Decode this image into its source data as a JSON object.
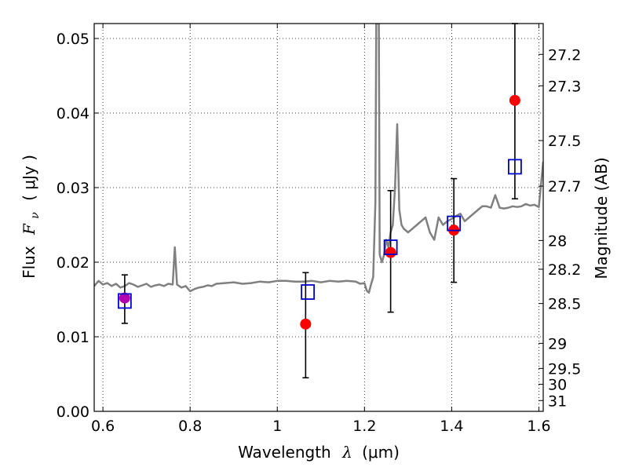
{
  "chart_data": {
    "type": "scatter",
    "xlabel": {
      "text": "Wavelength",
      "sym": "λ",
      "unit": "(μm)"
    },
    "ylabel": {
      "text": "Flux",
      "sym": "F",
      "sub": "ν",
      "unit": "( μJy )"
    },
    "y2label": "Magnitude (AB)",
    "xlim": [
      0.58,
      1.61
    ],
    "ylim": [
      0.0,
      0.052
    ],
    "grid": true,
    "xticks": [
      {
        "value": 0.6,
        "label": "0.6"
      },
      {
        "value": 0.8,
        "label": "0.8"
      },
      {
        "value": 1.0,
        "label": "1"
      },
      {
        "value": 1.2,
        "label": "1.2"
      },
      {
        "value": 1.4,
        "label": "1.4"
      },
      {
        "value": 1.6,
        "label": "1.6"
      }
    ],
    "yticks": [
      {
        "value": 0.0,
        "label": "0.00"
      },
      {
        "value": 0.01,
        "label": "0.01"
      },
      {
        "value": 0.02,
        "label": "0.02"
      },
      {
        "value": 0.03,
        "label": "0.03"
      },
      {
        "value": 0.04,
        "label": "0.04"
      },
      {
        "value": 0.05,
        "label": "0.05"
      }
    ],
    "y2ticks": [
      {
        "mag": 27.2,
        "label": "27.2"
      },
      {
        "mag": 27.3,
        "label": "27.3"
      },
      {
        "mag": 27.5,
        "label": "27.5"
      },
      {
        "mag": 27.7,
        "label": "27.7"
      },
      {
        "mag": 28.0,
        "label": "28"
      },
      {
        "mag": 28.2,
        "label": "28.2"
      },
      {
        "mag": 28.5,
        "label": "28.5"
      },
      {
        "mag": 29.0,
        "label": "29"
      },
      {
        "mag": 29.5,
        "label": "29.5"
      },
      {
        "mag": 30.0,
        "label": "30"
      },
      {
        "mag": 31.0,
        "label": "31"
      }
    ],
    "colors": {
      "spectrum": "#808080",
      "observed": "#ff0000",
      "model": "#0000cc",
      "overlap": "#b000b0",
      "errorbar": "#000000"
    },
    "spectrum": {
      "x": [
        0.58,
        0.59,
        0.6,
        0.61,
        0.62,
        0.63,
        0.64,
        0.65,
        0.66,
        0.67,
        0.68,
        0.69,
        0.7,
        0.71,
        0.72,
        0.73,
        0.74,
        0.75,
        0.76,
        0.765,
        0.77,
        0.78,
        0.79,
        0.8,
        0.81,
        0.82,
        0.83,
        0.84,
        0.85,
        0.86,
        0.88,
        0.9,
        0.92,
        0.94,
        0.96,
        0.98,
        1.0,
        1.02,
        1.04,
        1.06,
        1.08,
        1.1,
        1.12,
        1.14,
        1.16,
        1.18,
        1.19,
        1.2,
        1.205,
        1.21,
        1.215,
        1.22,
        1.225,
        1.227,
        1.23,
        1.233,
        1.235,
        1.24,
        1.245,
        1.25,
        1.255,
        1.26,
        1.265,
        1.27,
        1.275,
        1.28,
        1.285,
        1.29,
        1.3,
        1.31,
        1.32,
        1.33,
        1.34,
        1.35,
        1.36,
        1.37,
        1.38,
        1.39,
        1.4,
        1.41,
        1.42,
        1.43,
        1.44,
        1.45,
        1.46,
        1.47,
        1.48,
        1.49,
        1.5,
        1.51,
        1.52,
        1.53,
        1.54,
        1.55,
        1.56,
        1.57,
        1.58,
        1.59,
        1.6,
        1.61
      ],
      "y": [
        0.0168,
        0.0175,
        0.017,
        0.0172,
        0.0168,
        0.0171,
        0.0166,
        0.0168,
        0.0172,
        0.017,
        0.0167,
        0.0169,
        0.0171,
        0.0167,
        0.0169,
        0.017,
        0.0168,
        0.0171,
        0.017,
        0.022,
        0.017,
        0.0166,
        0.0168,
        0.0161,
        0.0164,
        0.0166,
        0.0167,
        0.0169,
        0.0168,
        0.0171,
        0.0172,
        0.0173,
        0.0171,
        0.0172,
        0.0174,
        0.0173,
        0.0175,
        0.0175,
        0.0174,
        0.0174,
        0.0175,
        0.0173,
        0.0175,
        0.0174,
        0.0175,
        0.0174,
        0.0171,
        0.0172,
        0.0162,
        0.0159,
        0.017,
        0.018,
        0.028,
        0.052,
        0.052,
        0.052,
        0.021,
        0.02,
        0.021,
        0.023,
        0.022,
        0.024,
        0.025,
        0.03,
        0.0385,
        0.027,
        0.025,
        0.0245,
        0.024,
        0.0245,
        0.025,
        0.0255,
        0.026,
        0.024,
        0.023,
        0.026,
        0.025,
        0.0255,
        0.0258,
        0.0262,
        0.0265,
        0.0255,
        0.026,
        0.0265,
        0.027,
        0.0275,
        0.0275,
        0.0273,
        0.029,
        0.0273,
        0.0272,
        0.0273,
        0.0275,
        0.0274,
        0.0275,
        0.0278,
        0.0276,
        0.0277,
        0.0274,
        0.0335
      ]
    },
    "observed": [
      {
        "x": 0.65,
        "y": 0.0152,
        "err_lo": 0.0118,
        "err_hi": 0.0183
      },
      {
        "x": 1.065,
        "y": 0.0117,
        "err_lo": 0.0045,
        "err_hi": 0.0186
      },
      {
        "x": 1.26,
        "y": 0.0213,
        "err_lo": 0.0133,
        "err_hi": 0.0296
      },
      {
        "x": 1.405,
        "y": 0.0243,
        "err_lo": 0.0173,
        "err_hi": 0.0312
      },
      {
        "x": 1.545,
        "y": 0.0417,
        "err_lo": 0.0285,
        "err_hi": 0.052
      }
    ],
    "model": [
      {
        "x": 0.65,
        "y": 0.0148
      },
      {
        "x": 1.07,
        "y": 0.016
      },
      {
        "x": 1.26,
        "y": 0.022
      },
      {
        "x": 1.405,
        "y": 0.0252
      },
      {
        "x": 1.545,
        "y": 0.0328
      }
    ]
  }
}
